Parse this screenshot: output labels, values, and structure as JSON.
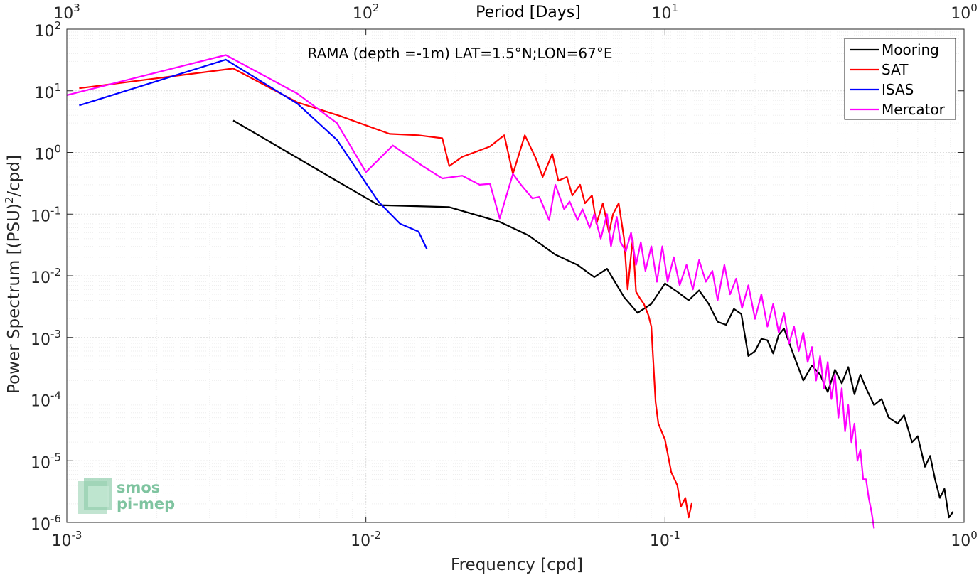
{
  "chart_data": {
    "type": "line",
    "title": "RAMA (depth =-1m) LAT=1.5°N;LON=67°E",
    "xlabel": "Frequency [cpd]",
    "x2label": "Period [Days]",
    "ylabel": "Power Spectrum [(PSU)²/cpd]",
    "ylabel_base": "Power Spectrum [(PSU)",
    "ylabel_sup": "2",
    "ylabel_tail": "/cpd]",
    "xscale": "log",
    "yscale": "log",
    "xlim": [
      0.001,
      1
    ],
    "ylim": [
      1e-06,
      100
    ],
    "grid": true,
    "legend_position": "top-right",
    "xticks": [
      {
        "v": 0.001,
        "base": "10",
        "exp": "-3"
      },
      {
        "v": 0.01,
        "base": "10",
        "exp": "-2"
      },
      {
        "v": 0.1,
        "base": "10",
        "exp": "-1"
      },
      {
        "v": 1,
        "base": "10",
        "exp": "0"
      }
    ],
    "x2ticks": [
      {
        "v": 0.001,
        "base": "10",
        "exp": "3"
      },
      {
        "v": 0.01,
        "base": "10",
        "exp": "2"
      },
      {
        "v": 0.1,
        "base": "10",
        "exp": "1"
      },
      {
        "v": 1,
        "base": "10",
        "exp": "0"
      }
    ],
    "yticks": [
      {
        "v": 1e-06,
        "base": "10",
        "exp": "-6"
      },
      {
        "v": 1e-05,
        "base": "10",
        "exp": "-5"
      },
      {
        "v": 0.0001,
        "base": "10",
        "exp": "-4"
      },
      {
        "v": 0.001,
        "base": "10",
        "exp": "-3"
      },
      {
        "v": 0.01,
        "base": "10",
        "exp": "-2"
      },
      {
        "v": 0.1,
        "base": "10",
        "exp": "-1"
      },
      {
        "v": 1,
        "base": "10",
        "exp": "0"
      },
      {
        "v": 10,
        "base": "10",
        "exp": "1"
      },
      {
        "v": 100,
        "base": "10",
        "exp": "2"
      }
    ],
    "series": [
      {
        "name": "Mooring",
        "color": "#000000",
        "x": [
          0.0036,
          0.011,
          0.019,
          0.028,
          0.035,
          0.043,
          0.051,
          0.058,
          0.064,
          0.073,
          0.081,
          0.09,
          0.1,
          0.11,
          0.12,
          0.13,
          0.14,
          0.15,
          0.16,
          0.17,
          0.18,
          0.19,
          0.2,
          0.21,
          0.22,
          0.23,
          0.24,
          0.25,
          0.27,
          0.29,
          0.31,
          0.33,
          0.35,
          0.37,
          0.39,
          0.41,
          0.43,
          0.45,
          0.47,
          0.5,
          0.53,
          0.56,
          0.6,
          0.63,
          0.67,
          0.7,
          0.74,
          0.77,
          0.8,
          0.83,
          0.86,
          0.89,
          0.92
        ],
        "y": [
          3.3,
          0.14,
          0.13,
          0.075,
          0.045,
          0.022,
          0.015,
          0.0095,
          0.013,
          0.0045,
          0.0025,
          0.0035,
          0.0075,
          0.0055,
          0.004,
          0.0058,
          0.0035,
          0.0018,
          0.0016,
          0.0029,
          0.0024,
          0.0005,
          0.0006,
          0.00095,
          0.0009,
          0.00055,
          0.0011,
          0.0014,
          0.0005,
          0.0002,
          0.00035,
          0.00025,
          0.00013,
          0.0003,
          0.00018,
          0.00033,
          0.00012,
          0.00025,
          0.00015,
          8e-05,
          0.0001,
          5e-05,
          4e-05,
          5.5e-05,
          2e-05,
          2.5e-05,
          8e-06,
          1.2e-05,
          5e-06,
          2.5e-06,
          3.5e-06,
          1.2e-06,
          1.5e-06
        ]
      },
      {
        "name": "SAT",
        "color": "#ff0000",
        "x": [
          0.0011,
          0.0036,
          0.0059,
          0.0082,
          0.012,
          0.015,
          0.018,
          0.019,
          0.021,
          0.023,
          0.026,
          0.029,
          0.031,
          0.034,
          0.037,
          0.039,
          0.042,
          0.044,
          0.047,
          0.049,
          0.052,
          0.054,
          0.057,
          0.059,
          0.062,
          0.065,
          0.067,
          0.07,
          0.073,
          0.075,
          0.078,
          0.08,
          0.082,
          0.085,
          0.088,
          0.09,
          0.093,
          0.095,
          0.1,
          0.105,
          0.11,
          0.113,
          0.117,
          0.12,
          0.123
        ],
        "y": [
          11,
          23,
          6.5,
          3.9,
          2.0,
          1.9,
          1.7,
          0.6,
          0.85,
          1.0,
          1.25,
          1.9,
          0.45,
          1.9,
          0.8,
          0.4,
          0.95,
          0.35,
          0.4,
          0.2,
          0.3,
          0.15,
          0.2,
          0.07,
          0.15,
          0.05,
          0.1,
          0.15,
          0.04,
          0.006,
          0.04,
          0.0055,
          0.0045,
          0.0035,
          0.0023,
          0.0015,
          9e-05,
          4e-05,
          2.2e-05,
          6.5e-06,
          4e-06,
          1.8e-06,
          2.5e-06,
          1.2e-06,
          2.1e-06
        ]
      },
      {
        "name": "ISAS",
        "color": "#0000ff",
        "x": [
          0.0011,
          0.0034,
          0.0059,
          0.008,
          0.011,
          0.013,
          0.015,
          0.016
        ],
        "y": [
          5.8,
          32,
          6.2,
          1.6,
          0.16,
          0.07,
          0.052,
          0.027
        ]
      },
      {
        "name": "Mercator",
        "color": "#ff00ff",
        "x": [
          0.001,
          0.0034,
          0.0059,
          0.008,
          0.01,
          0.0123,
          0.0155,
          0.018,
          0.021,
          0.024,
          0.026,
          0.028,
          0.031,
          0.033,
          0.036,
          0.038,
          0.041,
          0.043,
          0.046,
          0.048,
          0.051,
          0.053,
          0.056,
          0.058,
          0.061,
          0.064,
          0.066,
          0.069,
          0.071,
          0.074,
          0.077,
          0.08,
          0.083,
          0.086,
          0.09,
          0.094,
          0.098,
          0.102,
          0.107,
          0.112,
          0.118,
          0.124,
          0.13,
          0.137,
          0.144,
          0.15,
          0.158,
          0.165,
          0.173,
          0.181,
          0.19,
          0.2,
          0.21,
          0.22,
          0.23,
          0.24,
          0.25,
          0.26,
          0.27,
          0.28,
          0.29,
          0.3,
          0.31,
          0.32,
          0.33,
          0.34,
          0.35,
          0.36,
          0.37,
          0.38,
          0.39,
          0.4,
          0.41,
          0.42,
          0.43,
          0.44,
          0.45,
          0.46,
          0.47,
          0.48,
          0.49,
          0.5
        ],
        "y": [
          8.5,
          38,
          9.0,
          3.0,
          0.48,
          1.3,
          0.6,
          0.38,
          0.42,
          0.3,
          0.31,
          0.085,
          0.45,
          0.3,
          0.18,
          0.19,
          0.08,
          0.3,
          0.12,
          0.16,
          0.08,
          0.12,
          0.06,
          0.1,
          0.04,
          0.1,
          0.03,
          0.09,
          0.035,
          0.025,
          0.05,
          0.015,
          0.035,
          0.012,
          0.03,
          0.008,
          0.03,
          0.008,
          0.02,
          0.007,
          0.015,
          0.006,
          0.018,
          0.008,
          0.012,
          0.004,
          0.015,
          0.005,
          0.009,
          0.003,
          0.007,
          0.002,
          0.005,
          0.0015,
          0.0035,
          0.0012,
          0.0025,
          0.0008,
          0.0015,
          0.0006,
          0.0012,
          0.0004,
          0.0007,
          0.0002,
          0.0005,
          0.00015,
          0.0004,
          0.0001,
          0.00025,
          5e-05,
          0.00015,
          3e-05,
          8e-05,
          2e-05,
          4e-05,
          1e-05,
          1.5e-05,
          5e-06,
          5e-06,
          2.5e-06,
          1.5e-06,
          8e-07
        ]
      }
    ]
  },
  "logo": {
    "line1": "smos",
    "line2": "pi-mep"
  }
}
